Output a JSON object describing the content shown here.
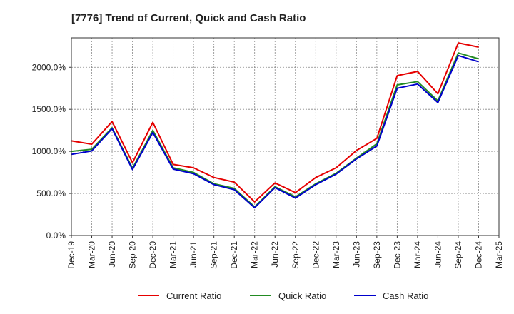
{
  "chart_data": {
    "type": "line",
    "title": "[7776]  Trend of Current, Quick and Cash Ratio",
    "xlabel": "",
    "ylabel": "",
    "ylim": [
      0,
      2350
    ],
    "y_ticks": [
      0,
      500,
      1000,
      1500,
      2000
    ],
    "y_tick_labels": [
      "0.0%",
      "500.0%",
      "1000.0%",
      "1500.0%",
      "2000.0%"
    ],
    "x_tick_labels": [
      "Dec-19",
      "Mar-20",
      "Jun-20",
      "Sep-20",
      "Dec-20",
      "Mar-21",
      "Jun-21",
      "Sep-21",
      "Dec-21",
      "Mar-22",
      "Jun-22",
      "Sep-22",
      "Dec-22",
      "Mar-23",
      "Jun-23",
      "Sep-23",
      "Dec-23",
      "Mar-24",
      "Jun-24",
      "Sep-24",
      "Dec-24",
      "Mar-25"
    ],
    "x": [
      "Dec-19",
      "Mar-20",
      "Jun-20",
      "Sep-20",
      "Dec-20",
      "Mar-21",
      "Jun-21",
      "Sep-21",
      "Dec-21",
      "Mar-22",
      "Jun-22",
      "Sep-22",
      "Dec-22",
      "Mar-23",
      "Jun-23",
      "Sep-23",
      "Dec-23",
      "Mar-24",
      "Jun-24",
      "Sep-24",
      "Dec-24"
    ],
    "grid": true,
    "legend_position": "bottom",
    "series": [
      {
        "name": "Current Ratio",
        "color": "#e60000",
        "values": [
          1125,
          1085,
          1355,
          865,
          1345,
          845,
          805,
          690,
          635,
          400,
          625,
          510,
          690,
          805,
          1010,
          1155,
          1900,
          1950,
          1685,
          2290,
          2240
        ]
      },
      {
        "name": "Quick Ratio",
        "color": "#228b22",
        "values": [
          1000,
          1025,
          1280,
          800,
          1250,
          805,
          750,
          615,
          560,
          340,
          580,
          460,
          615,
          740,
          920,
          1090,
          1790,
          1830,
          1600,
          2170,
          2100
        ]
      },
      {
        "name": "Cash Ratio",
        "color": "#0000cc",
        "values": [
          965,
          1005,
          1270,
          785,
          1225,
          790,
          735,
          605,
          545,
          330,
          570,
          445,
          605,
          730,
          910,
          1065,
          1750,
          1800,
          1580,
          2140,
          2065
        ]
      }
    ]
  }
}
